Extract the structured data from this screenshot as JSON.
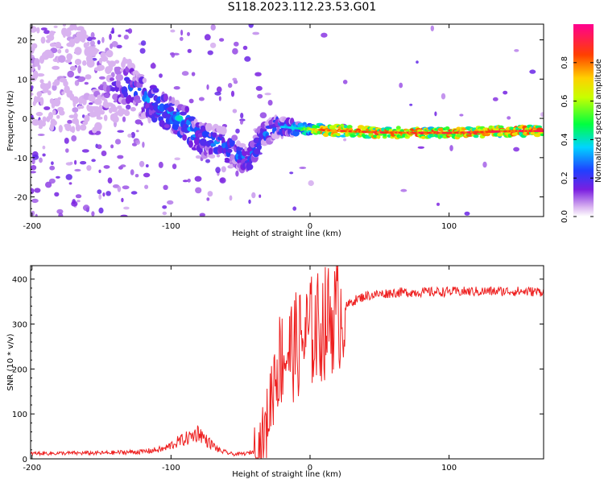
{
  "title": "S118.2023.112.23.53.G01",
  "chart_data": [
    {
      "type": "heatmap",
      "xlabel": "Height of straight line (km)",
      "ylabel": "Frequency (Hz)",
      "xlim": [
        -201,
        168
      ],
      "ylim": [
        -25,
        24
      ],
      "xticks": [
        -200,
        -100,
        0,
        100
      ],
      "yticks": [
        -20,
        -10,
        0,
        10,
        20
      ],
      "colorbar": {
        "label": "Normalized spectral amplitude",
        "range": [
          0.0,
          1.0
        ],
        "ticks": [
          "0.0",
          "0.2",
          "0.4",
          "0.6",
          "0.8"
        ],
        "tick_values": [
          0.0,
          0.2,
          0.4,
          0.6,
          0.8
        ]
      },
      "ridge": [
        {
          "x": -201,
          "f": 15,
          "amp": 0.08,
          "width": 22
        },
        {
          "x": -150,
          "f": 8,
          "amp": 0.12,
          "width": 14
        },
        {
          "x": -130,
          "f": 8,
          "amp": 0.25,
          "width": 8
        },
        {
          "x": -110,
          "f": 3,
          "amp": 0.35,
          "width": 5
        },
        {
          "x": -90,
          "f": -1,
          "amp": 0.38,
          "width": 5
        },
        {
          "x": -80,
          "f": -5,
          "amp": 0.3,
          "width": 5
        },
        {
          "x": -60,
          "f": -7,
          "amp": 0.3,
          "width": 5
        },
        {
          "x": -45,
          "f": -11,
          "amp": 0.3,
          "width": 4
        },
        {
          "x": -35,
          "f": -5,
          "amp": 0.28,
          "width": 4
        },
        {
          "x": -25,
          "f": -2,
          "amp": 0.32,
          "width": 3
        },
        {
          "x": -10,
          "f": -2.5,
          "amp": 0.4,
          "width": 2
        },
        {
          "x": 10,
          "f": -3,
          "amp": 0.85,
          "width": 1.8
        },
        {
          "x": 50,
          "f": -3.6,
          "amp": 0.9,
          "width": 1.6
        },
        {
          "x": 100,
          "f": -3.7,
          "amp": 0.9,
          "width": 1.5
        },
        {
          "x": 150,
          "f": -3.2,
          "amp": 0.9,
          "width": 1.5
        },
        {
          "x": 168,
          "f": -3.2,
          "amp": 0.95,
          "width": 1.5
        }
      ]
    },
    {
      "type": "line",
      "xlabel": "Height of straight line (km)",
      "ylabel": "SNR (10 * v/v)",
      "xlim": [
        -201,
        168
      ],
      "ylim": [
        0,
        430
      ],
      "xticks": [
        -200,
        -100,
        0,
        100
      ],
      "yticks": [
        0,
        100,
        200,
        300,
        400
      ],
      "series": [
        {
          "name": "SNR",
          "color": "#ee2020",
          "x": [
            -201,
            -150,
            -120,
            -105,
            -95,
            -85,
            -80,
            -75,
            -65,
            -55,
            -45,
            -38,
            -32,
            -28,
            -25,
            -20,
            -10,
            0,
            10,
            15,
            20,
            25,
            30,
            40,
            60,
            100,
            140,
            168
          ],
          "y": [
            12,
            13,
            16,
            22,
            38,
            50,
            60,
            42,
            18,
            10,
            12,
            20,
            60,
            140,
            200,
            230,
            250,
            280,
            300,
            315,
            320,
            335,
            350,
            363,
            370,
            372,
            373,
            372
          ]
        }
      ]
    }
  ]
}
